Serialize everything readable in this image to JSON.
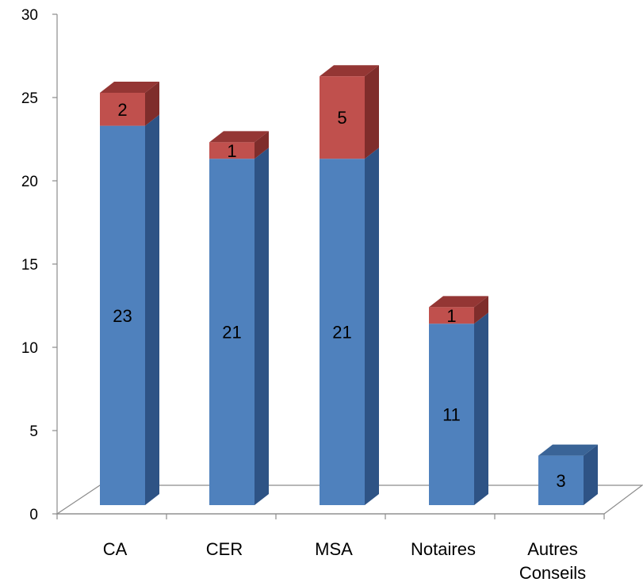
{
  "chart_data": {
    "type": "bar",
    "stacked": true,
    "three_d": true,
    "categories": [
      [
        "CA"
      ],
      [
        "CER"
      ],
      [
        "MSA"
      ],
      [
        "Notaires"
      ],
      [
        "Autres",
        "Conseils"
      ]
    ],
    "series": [
      {
        "values": [
          23,
          21,
          21,
          11,
          3
        ],
        "color": "#4F81BD",
        "color_side": "#2E5385",
        "color_top": "#3A6497"
      },
      {
        "values": [
          2,
          1,
          5,
          1,
          0
        ],
        "color": "#C0504D",
        "color_side": "#7F2D2B",
        "color_top": "#943634"
      }
    ],
    "ylim": [
      0,
      30
    ],
    "yticks": [
      0,
      5,
      10,
      15,
      20,
      25,
      30
    ],
    "title": "",
    "xlabel": "",
    "ylabel": "",
    "grid": false,
    "legend": "none"
  }
}
